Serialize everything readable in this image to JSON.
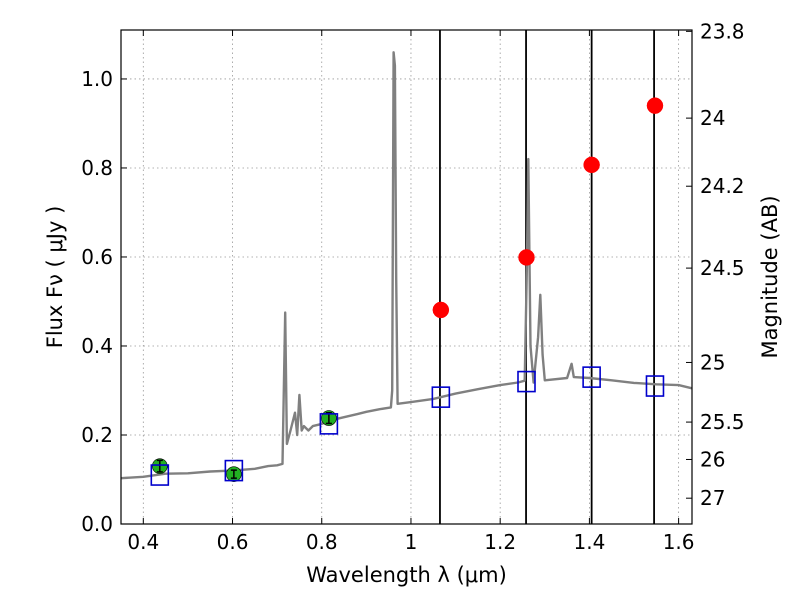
{
  "chart_data": {
    "type": "line",
    "xlabel": "Wavelength  λ (μm)",
    "ylabel": "Flux  Fν  ( μJy )",
    "ylabel_right": "Magnitude (AB)",
    "xlim": [
      0.35,
      1.63
    ],
    "ylim": [
      0.0,
      1.11
    ],
    "grid": true,
    "x_ticks": [
      {
        "value": 0.4,
        "label": "0.4"
      },
      {
        "value": 0.6,
        "label": "0.6"
      },
      {
        "value": 0.8,
        "label": "0.8"
      },
      {
        "value": 1.0,
        "label": "1"
      },
      {
        "value": 1.2,
        "label": "1.2"
      },
      {
        "value": 1.4,
        "label": "1.4"
      },
      {
        "value": 1.6,
        "label": "1.6"
      }
    ],
    "y_ticks": [
      {
        "value": 0.0,
        "label": "0.0"
      },
      {
        "value": 0.2,
        "label": "0.2"
      },
      {
        "value": 0.4,
        "label": "0.4"
      },
      {
        "value": 0.6,
        "label": "0.6"
      },
      {
        "value": 0.8,
        "label": "0.8"
      },
      {
        "value": 1.0,
        "label": "1.0"
      }
    ],
    "right_ticks": [
      {
        "flux": 1.107,
        "label": "23.8"
      },
      {
        "flux": 0.912,
        "label": "24"
      },
      {
        "flux": 0.759,
        "label": "24.2"
      },
      {
        "flux": 0.575,
        "label": "24.5"
      },
      {
        "flux": 0.363,
        "label": "25"
      },
      {
        "flux": 0.229,
        "label": "25.5"
      },
      {
        "flux": 0.145,
        "label": "26"
      },
      {
        "flux": 0.058,
        "label": "27"
      }
    ],
    "vertical_lines": [
      1.065,
      1.258,
      1.405,
      1.545
    ],
    "series": [
      {
        "style": "line",
        "color": "#808080",
        "points": [
          [
            0.35,
            0.103
          ],
          [
            0.4,
            0.106
          ],
          [
            0.45,
            0.113
          ],
          [
            0.5,
            0.114
          ],
          [
            0.55,
            0.118
          ],
          [
            0.6,
            0.12
          ],
          [
            0.65,
            0.124
          ],
          [
            0.68,
            0.13
          ],
          [
            0.7,
            0.132
          ],
          [
            0.712,
            0.135
          ],
          [
            0.718,
            0.475
          ],
          [
            0.722,
            0.18
          ],
          [
            0.73,
            0.21
          ],
          [
            0.74,
            0.25
          ],
          [
            0.745,
            0.2
          ],
          [
            0.75,
            0.29
          ],
          [
            0.755,
            0.21
          ],
          [
            0.76,
            0.22
          ],
          [
            0.77,
            0.21
          ],
          [
            0.78,
            0.22
          ],
          [
            0.8,
            0.225
          ],
          [
            0.82,
            0.233
          ],
          [
            0.85,
            0.24
          ],
          [
            0.88,
            0.247
          ],
          [
            0.9,
            0.252
          ],
          [
            0.93,
            0.258
          ],
          [
            0.955,
            0.262
          ],
          [
            0.958,
            0.3
          ],
          [
            0.961,
            1.06
          ],
          [
            0.964,
            1.03
          ],
          [
            0.967,
            0.55
          ],
          [
            0.97,
            0.27
          ],
          [
            1.0,
            0.274
          ],
          [
            1.05,
            0.281
          ],
          [
            1.1,
            0.293
          ],
          [
            1.15,
            0.303
          ],
          [
            1.2,
            0.312
          ],
          [
            1.24,
            0.318
          ],
          [
            1.255,
            0.322
          ],
          [
            1.26,
            0.58
          ],
          [
            1.263,
            0.82
          ],
          [
            1.268,
            0.4
          ],
          [
            1.275,
            0.318
          ],
          [
            1.285,
            0.42
          ],
          [
            1.29,
            0.515
          ],
          [
            1.295,
            0.38
          ],
          [
            1.3,
            0.323
          ],
          [
            1.35,
            0.328
          ],
          [
            1.36,
            0.36
          ],
          [
            1.365,
            0.33
          ],
          [
            1.4,
            0.328
          ],
          [
            1.45,
            0.323
          ],
          [
            1.5,
            0.317
          ],
          [
            1.55,
            0.314
          ],
          [
            1.6,
            0.312
          ],
          [
            1.63,
            0.305
          ]
        ]
      },
      {
        "style": "errorbar",
        "color": "#22b022",
        "points": [
          [
            0.437,
            0.13,
            0.013
          ],
          [
            0.603,
            0.112,
            0.009
          ],
          [
            0.816,
            0.238,
            0.012
          ]
        ]
      },
      {
        "style": "circle",
        "color": "#ff0000",
        "points": [
          [
            1.067,
            0.481
          ],
          [
            1.259,
            0.599
          ],
          [
            1.405,
            0.807
          ],
          [
            1.547,
            0.94
          ]
        ]
      },
      {
        "style": "square",
        "color": "#0000cc",
        "points": [
          [
            0.437,
            0.11
          ],
          [
            0.603,
            0.12
          ],
          [
            0.816,
            0.225
          ],
          [
            1.067,
            0.285
          ],
          [
            1.259,
            0.32
          ],
          [
            1.405,
            0.33
          ],
          [
            1.547,
            0.31
          ]
        ]
      }
    ]
  }
}
